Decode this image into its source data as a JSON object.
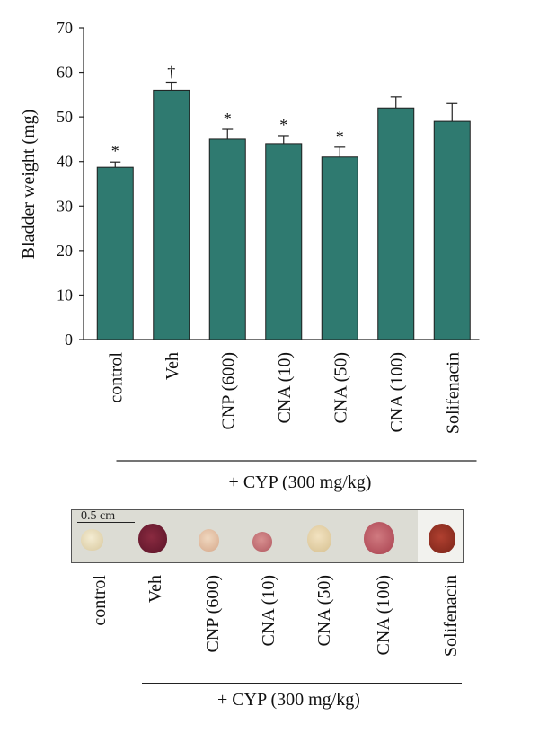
{
  "chart_data": {
    "type": "bar",
    "categories": [
      "control",
      "Veh",
      "CNP (600)",
      "CNA (10)",
      "CNA (50)",
      "CNA (100)",
      "Solifenacin"
    ],
    "values": [
      38.7,
      56.0,
      45.0,
      44.0,
      41.0,
      52.0,
      49.0
    ],
    "errors": [
      1.2,
      1.8,
      2.2,
      1.8,
      2.2,
      2.5,
      4.0
    ],
    "annotations": [
      "*",
      "†",
      "*",
      "*",
      "*",
      "",
      ""
    ],
    "ylabel": "Bladder weight (mg)",
    "ylim": [
      0,
      70
    ],
    "yticks": [
      "0",
      "10",
      "20",
      "30",
      "40",
      "50",
      "60",
      "70"
    ],
    "group_label": "+ CYP (300 mg/kg)",
    "bar_color": "#2f7a70"
  },
  "photo_panel": {
    "scale_label": "0.5 cm",
    "labels": [
      "control",
      "Veh",
      "CNP (600)",
      "CNA (10)",
      "CNA (50)",
      "CNA (100)",
      "Solifenacin"
    ],
    "group_label": "+ CYP (300 mg/kg)"
  }
}
